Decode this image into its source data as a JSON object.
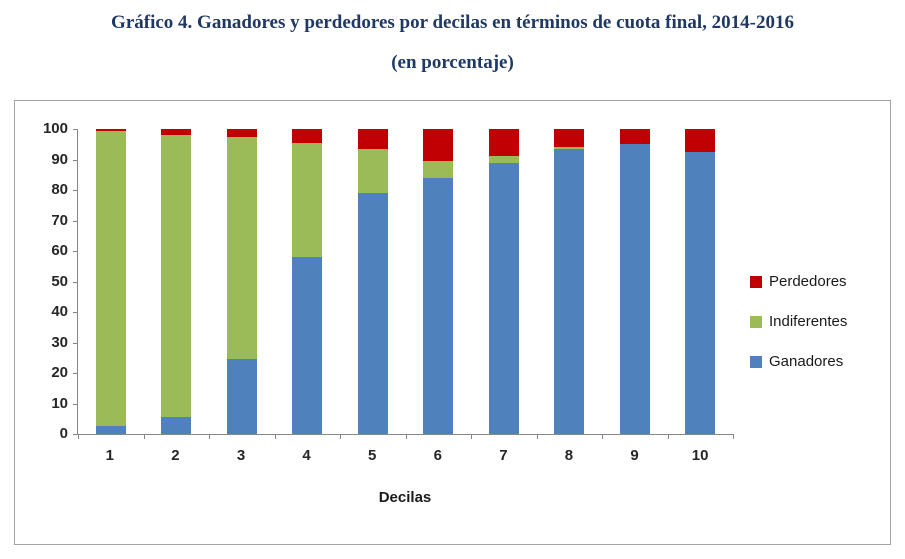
{
  "title": {
    "line1": "Gráfico 4. Ganadores y perdedores por decilas en términos de cuota final, 2014-2016",
    "line2": "(en porcentaje)"
  },
  "chart_data": {
    "type": "bar",
    "stacked": true,
    "title": "Gráfico 4. Ganadores y perdedores por decilas en términos de cuota final, 2014-2016 (en porcentaje)",
    "categories": [
      "1",
      "2",
      "3",
      "4",
      "5",
      "6",
      "7",
      "8",
      "9",
      "10"
    ],
    "series": [
      {
        "name": "Ganadores",
        "color": "#4F81BD",
        "values": [
          2.5,
          5.5,
          24.5,
          58,
          79,
          84,
          89,
          93.5,
          95,
          92.5
        ]
      },
      {
        "name": "Indiferentes",
        "color": "#9BBB59",
        "values": [
          97,
          92.5,
          73,
          37.5,
          14.5,
          5.5,
          2,
          0.5,
          0,
          0
        ]
      },
      {
        "name": "Perdedores",
        "color": "#C00000",
        "values": [
          0.5,
          2,
          2.5,
          4.5,
          6.5,
          10.5,
          9,
          6,
          5,
          7.5
        ]
      }
    ],
    "xlabel": "Decilas",
    "ylabel": "",
    "ylim": [
      0,
      100
    ],
    "ytick": 10,
    "grid": false,
    "legend_position": "right",
    "legend": [
      "Perdedores",
      "Indiferentes",
      "Ganadores"
    ]
  }
}
